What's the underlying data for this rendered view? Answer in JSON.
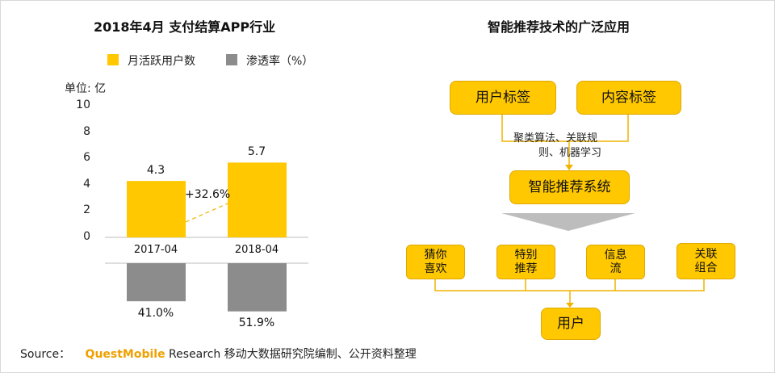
{
  "left": {
    "title": "2018年4月 支付结算APP行业",
    "legend": [
      {
        "label": "月活跃用户数",
        "color": "#ffc800"
      },
      {
        "label": "渗透率（%）",
        "color": "#8c8c8c"
      }
    ],
    "unit_label": "单位: 亿",
    "growth_label": "+32.6%",
    "chart_data": {
      "type": "bar",
      "categories": [
        "2017-04",
        "2018-04"
      ],
      "series": [
        {
          "name": "月活跃用户数",
          "values": [
            4.3,
            5.7
          ],
          "labels": [
            "4.3",
            "5.7"
          ],
          "color": "#ffc800"
        },
        {
          "name": "渗透率（%）",
          "values": [
            41.0,
            51.9
          ],
          "labels": [
            "41.0%",
            "51.9%"
          ],
          "color": "#8c8c8c"
        }
      ],
      "yticks": [
        "0",
        "2",
        "4",
        "6",
        "8",
        "10"
      ],
      "ylim": [
        0,
        10
      ]
    }
  },
  "right": {
    "title": "智能推荐技术的广泛应用",
    "boxes": {
      "user_tags": "用户标签",
      "content_tags": "内容标签",
      "system": "智能推荐系统",
      "user": "用户"
    },
    "method_line1": "聚类算法、关联规",
    "method_line2": "则、机器学习",
    "apps": [
      {
        "line1": "猜你",
        "line2": "喜欢"
      },
      {
        "line1": "特别",
        "line2": "推荐"
      },
      {
        "line1": "信息",
        "line2": "流"
      },
      {
        "line1": "关联",
        "line2": "组合"
      }
    ]
  },
  "source": {
    "prefix": "Source：",
    "brand": "QuestMobile",
    "text": " Research 移动大数据研究院编制、公开资料整理"
  },
  "colors": {
    "accent": "#ffc800",
    "gray": "#8c8c8c",
    "connector": "#f0b400"
  }
}
